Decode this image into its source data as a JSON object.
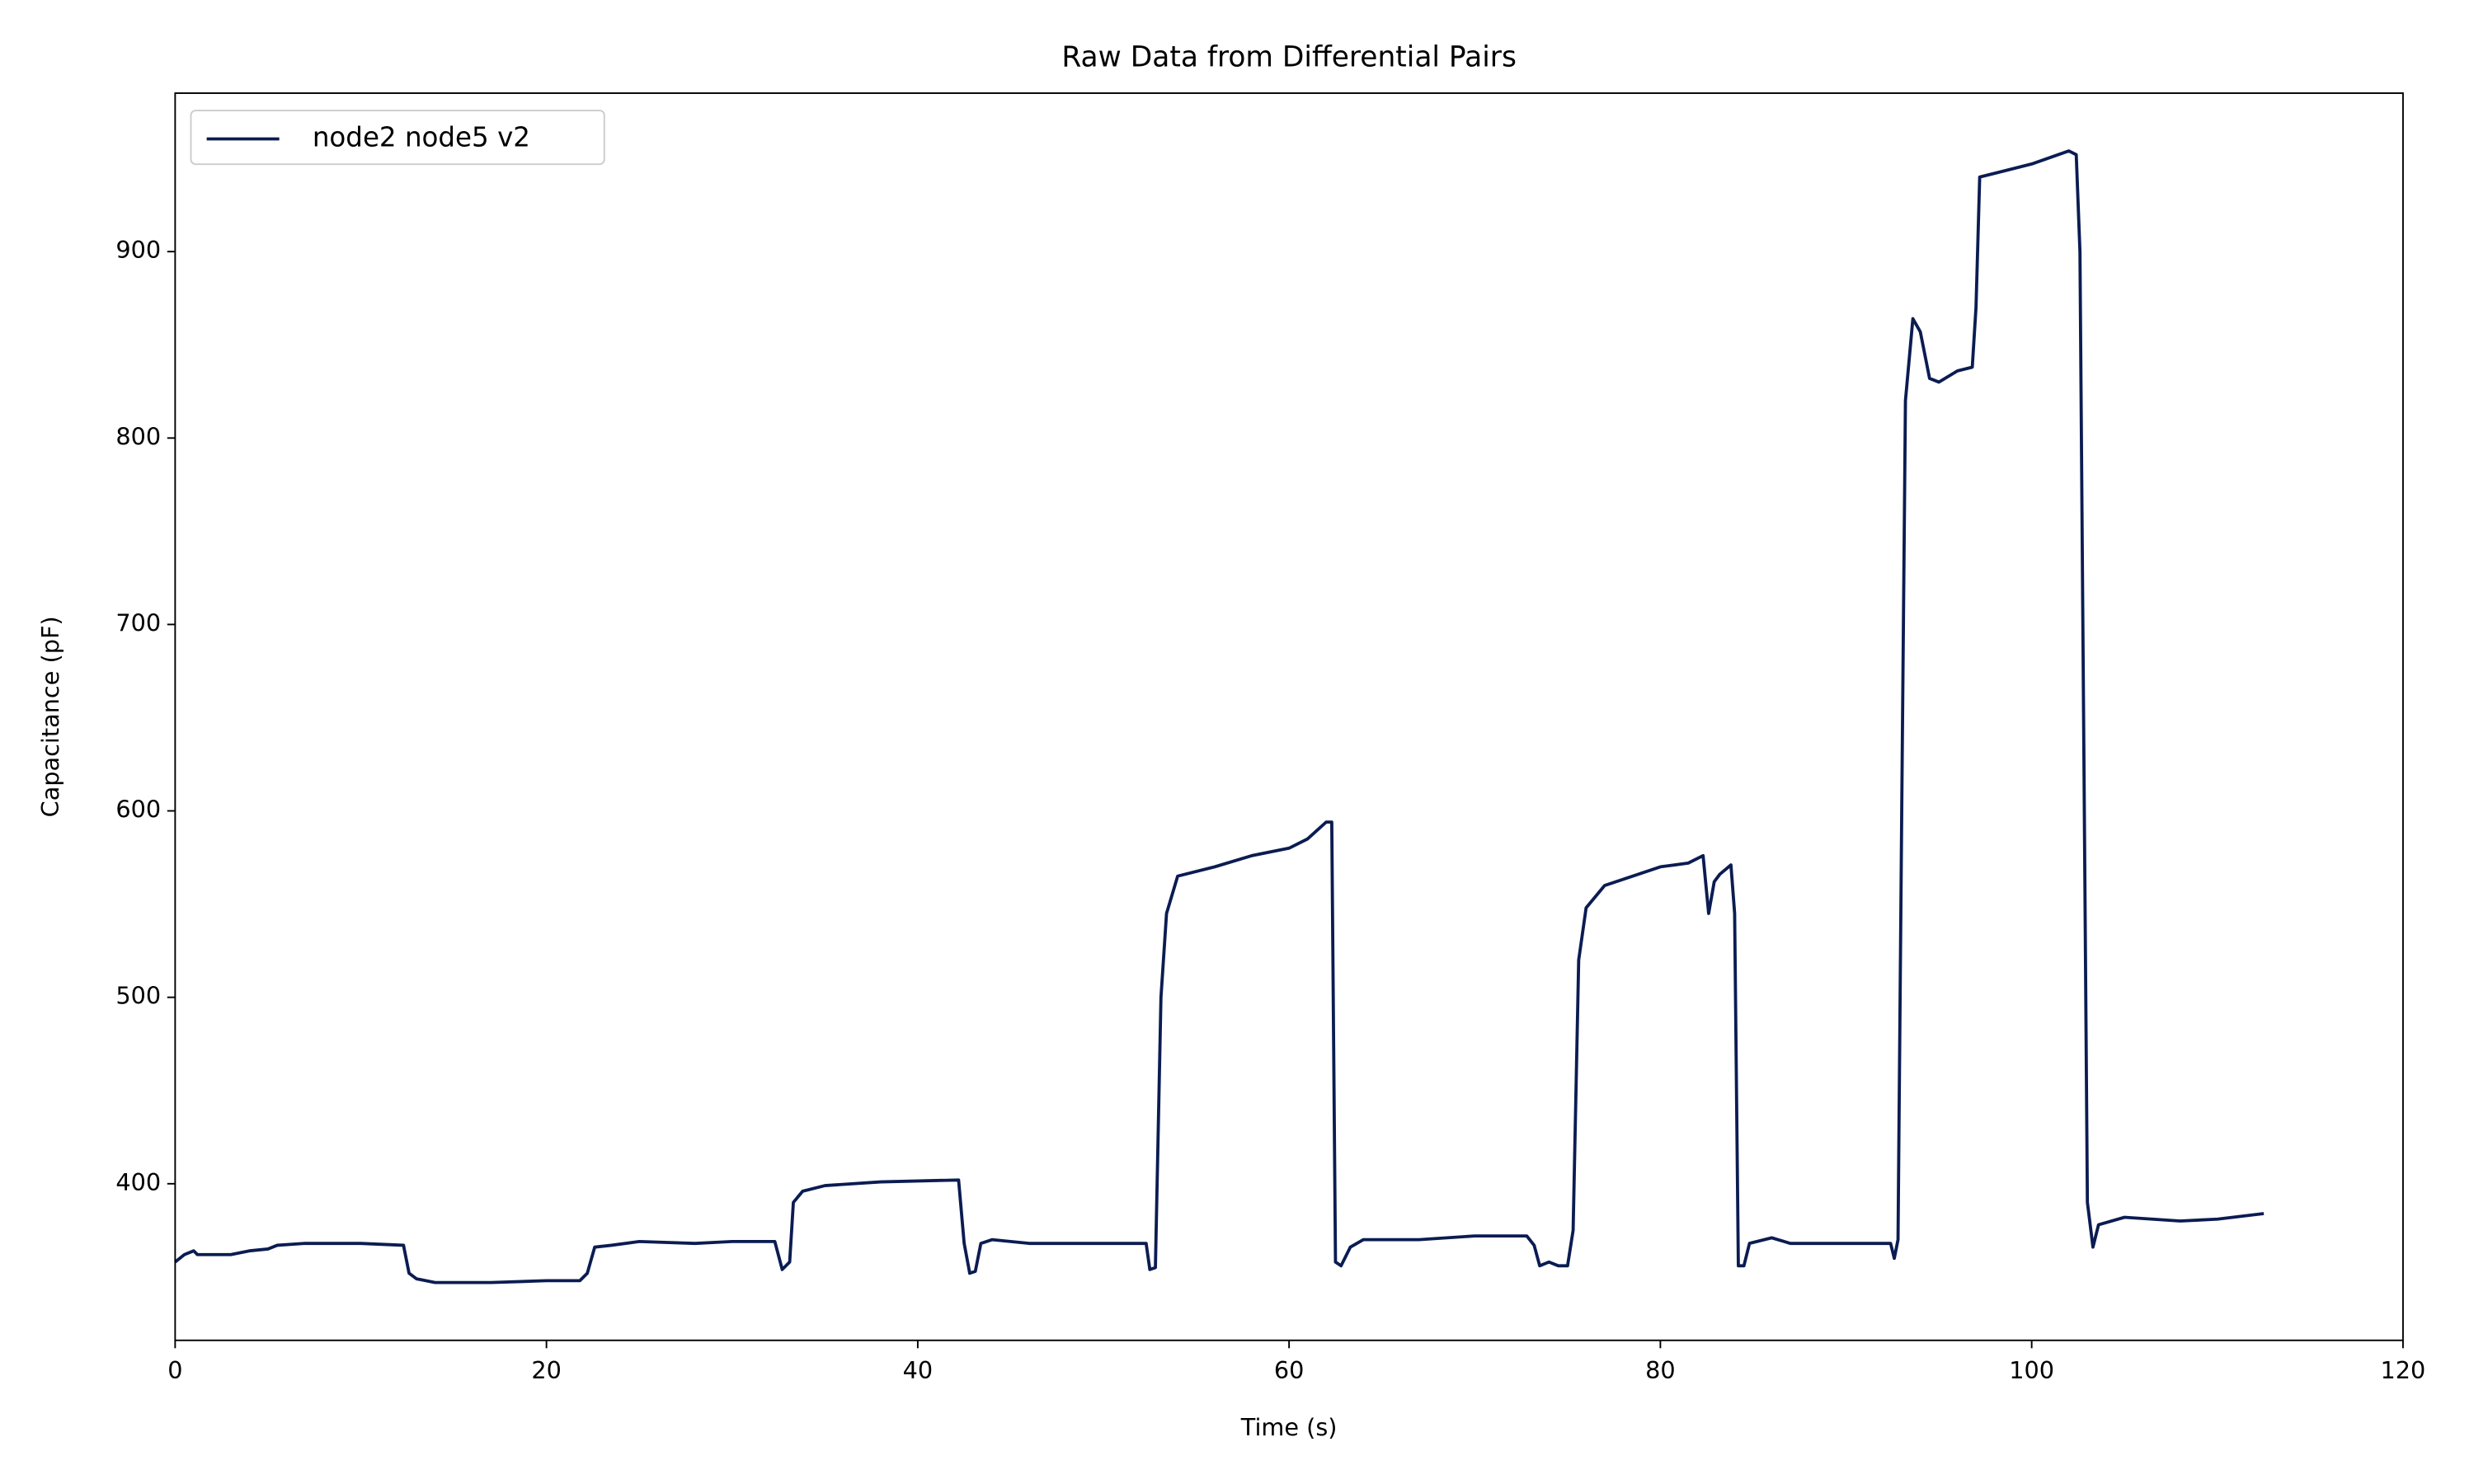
{
  "chart_data": {
    "type": "line",
    "title": "Raw Data from Differential Pairs",
    "xlabel": "Time (s)",
    "ylabel": "Capacitance (pF)",
    "xlim": [
      0,
      120
    ],
    "ylim": [
      316,
      985
    ],
    "xticks": [
      0,
      20,
      40,
      60,
      80,
      100,
      120
    ],
    "yticks": [
      400,
      500,
      600,
      700,
      800,
      900
    ],
    "grid": false,
    "legend": "upper left",
    "x": [
      0,
      0.5,
      1,
      1.2,
      3,
      4,
      5,
      5.5,
      7,
      10,
      12.3,
      12.6,
      13,
      14,
      17,
      20,
      21.8,
      22.2,
      22.6,
      23.5,
      25,
      28,
      30,
      32.3,
      32.7,
      33.1,
      33.3,
      33.8,
      35,
      38,
      42.2,
      42.5,
      42.8,
      43.1,
      43.4,
      44,
      46,
      50,
      52.3,
      52.5,
      52.8,
      53.1,
      53.4,
      54,
      56,
      58,
      60,
      61,
      62,
      62.3,
      62.5,
      62.8,
      63.3,
      64,
      67,
      70,
      72.8,
      73.2,
      73.5,
      74,
      74.5,
      75,
      75.3,
      75.6,
      76,
      77,
      80,
      81.5,
      82.3,
      82.6,
      82.9,
      83.2,
      83.8,
      84.0,
      84.2,
      84.5,
      84.8,
      86,
      87,
      90,
      92.4,
      92.6,
      92.8,
      93.0,
      93.2,
      93.6,
      94,
      94.5,
      95,
      96,
      96.8,
      97.0,
      97.2,
      98,
      100,
      102,
      102.4,
      102.6,
      103,
      103.3,
      103.6,
      105,
      108,
      110,
      112.5
    ],
    "series": [
      {
        "name": "node2 node5 v2",
        "color": "#0b1c52",
        "values": [
          358,
          362,
          364,
          362,
          362,
          364,
          365,
          367,
          368,
          368,
          367,
          352,
          349,
          347,
          347,
          348,
          348,
          352,
          366,
          367,
          369,
          368,
          369,
          369,
          354,
          358,
          390,
          396,
          399,
          401,
          402,
          368,
          352,
          353,
          368,
          370,
          368,
          368,
          368,
          354,
          355,
          500,
          545,
          565,
          570,
          576,
          580,
          585,
          594,
          594,
          358,
          356,
          366,
          370,
          370,
          372,
          372,
          367,
          356,
          358,
          356,
          356,
          375,
          520,
          548,
          560,
          570,
          572,
          576,
          545,
          562,
          566,
          571,
          545,
          356,
          356,
          368,
          371,
          368,
          368,
          368,
          360,
          370,
          600,
          820,
          864,
          857,
          832,
          830,
          836,
          838,
          870,
          940,
          942,
          947,
          954,
          952,
          900,
          390,
          366,
          378,
          382,
          380,
          381,
          384
        ]
      }
    ]
  }
}
